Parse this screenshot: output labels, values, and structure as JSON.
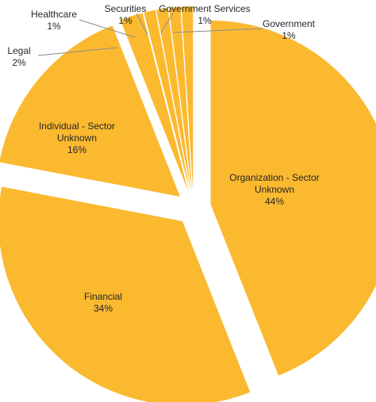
{
  "chart_data": {
    "type": "pie",
    "exploded": true,
    "slice_color": "#FBB930",
    "start_angle_deg": 0,
    "direction": "clockwise",
    "slices": [
      {
        "name": "Organization  - Sector Unknown",
        "lines": [
          "Organization  - Sector",
          "Unknown"
        ],
        "value": 44,
        "value_label": "44%"
      },
      {
        "name": "Financial",
        "lines": [
          "Financial"
        ],
        "value": 34,
        "value_label": "34%"
      },
      {
        "name": "Individual  - Sector Unknown",
        "lines": [
          "Individual  - Sector",
          "Unknown"
        ],
        "value": 16,
        "value_label": "16%"
      },
      {
        "name": "Legal",
        "lines": [
          "Legal"
        ],
        "value": 2,
        "value_label": "2%"
      },
      {
        "name": "Healthcare",
        "lines": [
          "Healthcare"
        ],
        "value": 1,
        "value_label": "1%"
      },
      {
        "name": "Securities",
        "lines": [
          "Securities"
        ],
        "value": 1,
        "value_label": "1%"
      },
      {
        "name": "Government  Services",
        "lines": [
          "Government  Services"
        ],
        "value": 1,
        "value_label": "1%"
      },
      {
        "name": "Government",
        "lines": [
          "Government"
        ],
        "value": 1,
        "value_label": "1%"
      }
    ]
  }
}
